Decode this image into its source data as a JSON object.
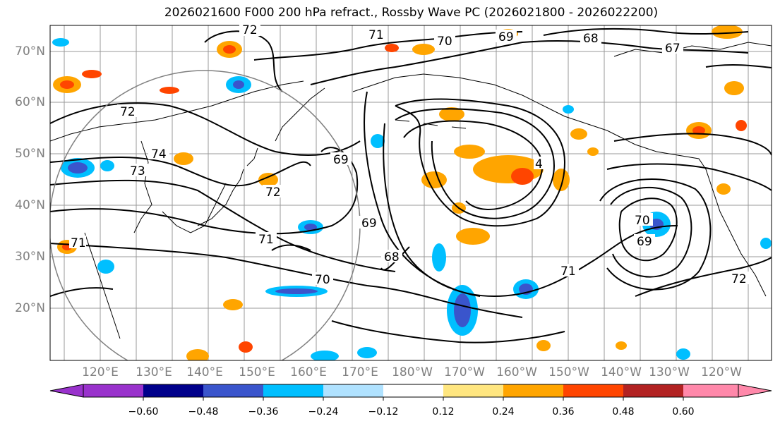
{
  "title": "2026021600 F000 200 hPa refract., Rossby Wave PC (2026021800 - 2026022200)",
  "map": {
    "lat_labels": [
      "70°N",
      "60°N",
      "50°N",
      "40°N",
      "30°N",
      "20°N"
    ],
    "lon_labels": [
      "120°E",
      "130°E",
      "140°E",
      "150°E",
      "160°E",
      "170°E",
      "180°W",
      "170°W",
      "160°W",
      "150°W",
      "140°W",
      "130°W",
      "120°W"
    ],
    "contour_labels": [
      "72",
      "71",
      "70",
      "69",
      "68",
      "67",
      "72",
      "74",
      "73",
      "72",
      "71",
      "69",
      "69",
      "68",
      "70",
      "71",
      "70",
      "69",
      "72",
      "71",
      "4"
    ],
    "land_color": "#ffffff",
    "grid_color": "#999999"
  },
  "colorbar": {
    "colors": [
      "#9932cc",
      "#00008b",
      "#3a55cc",
      "#00bfff",
      "#b0e2ff",
      "#ffffff",
      "#ffe680",
      "#ffa500",
      "#ff4500",
      "#b22222",
      "#ff88aa"
    ],
    "ticks": [
      "−0.60",
      "−0.48",
      "−0.36",
      "−0.24",
      "−0.12",
      "0.12",
      "0.24",
      "0.36",
      "0.48",
      "0.60"
    ]
  }
}
